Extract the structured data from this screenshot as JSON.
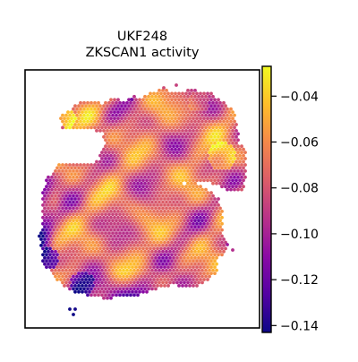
{
  "chart_data": {
    "type": "heatmap",
    "title_line1": "UKF248",
    "title_line2": "ZKSCAN1 activity",
    "colormap": "plasma",
    "colorbar": {
      "vmin": -0.143,
      "vmax": -0.027,
      "ticks": [
        -0.04,
        -0.06,
        -0.08,
        -0.1,
        -0.12,
        -0.14
      ],
      "tick_labels": [
        "−0.04",
        "−0.06",
        "−0.08",
        "−0.10",
        "−0.12",
        "−0.14"
      ]
    },
    "colormap_stops": [
      "#0d0887",
      "#5302a3",
      "#8b0aa5",
      "#b83289",
      "#db5c68",
      "#f48849",
      "#febd2a",
      "#f0f921"
    ],
    "axes": {
      "ticks_visible": false,
      "grid": false
    }
  }
}
